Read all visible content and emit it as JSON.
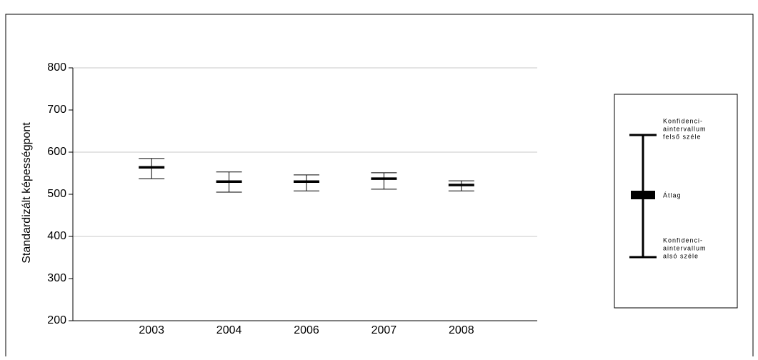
{
  "chart_data": {
    "type": "errorbar",
    "y_label": "Standardizált képességpont",
    "categories": [
      "2003",
      "2004",
      "2006",
      "2007",
      "2008"
    ],
    "series": [
      {
        "color": "#000000",
        "values": [
          564,
          530,
          530,
          537,
          522
        ],
        "lower": [
          537,
          505,
          508,
          512,
          508
        ],
        "upper": [
          585,
          553,
          546,
          551,
          532
        ]
      }
    ],
    "ylim": [
      200,
      800
    ],
    "yticks": [
      200,
      300,
      400,
      500,
      600,
      700,
      800
    ],
    "gridlines": [
      400,
      600,
      800
    ],
    "legend": {
      "upper": [
        "Konfidenci-",
        "aintervallum",
        "felső széle"
      ],
      "mean": [
        "Átlag"
      ],
      "lower": [
        "Konfidenci-",
        "aintervallum",
        "alsó széle"
      ]
    }
  }
}
